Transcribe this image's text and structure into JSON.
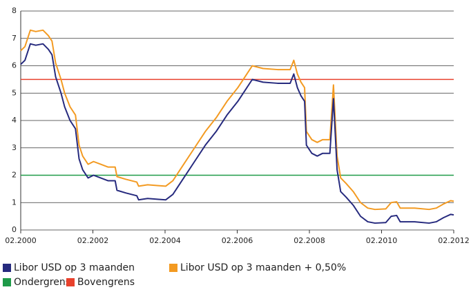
{
  "chart_data": {
    "type": "line",
    "x": [
      2000.083,
      2000.2,
      2000.35,
      2000.5,
      2000.7,
      2000.85,
      2000.95,
      2001.05,
      2001.2,
      2001.3,
      2001.45,
      2001.6,
      2001.7,
      2001.8,
      2001.95,
      2002.1,
      2002.3,
      2002.5,
      2002.7,
      2002.75,
      2003.0,
      2003.3,
      2003.35,
      2003.6,
      2003.9,
      2004.1,
      2004.3,
      2004.6,
      2004.9,
      2005.2,
      2005.5,
      2005.8,
      2006.1,
      2006.3,
      2006.5,
      2006.8,
      2007.2,
      2007.55,
      2007.65,
      2007.75,
      2007.85,
      2007.95,
      2008.0,
      2008.15,
      2008.3,
      2008.45,
      2008.65,
      2008.75,
      2008.85,
      2008.95,
      2009.1,
      2009.3,
      2009.5,
      2009.7,
      2009.9,
      2010.2,
      2010.35,
      2010.5,
      2010.6,
      2011.0,
      2011.4,
      2011.6,
      2011.8,
      2012.0,
      2012.083
    ],
    "series": [
      {
        "name": "Libor USD op 3 maanden",
        "color": "#262a7e",
        "values": [
          6.05,
          6.2,
          6.8,
          6.75,
          6.8,
          6.6,
          6.4,
          5.6,
          5.0,
          4.5,
          4.0,
          3.7,
          2.6,
          2.2,
          1.9,
          2.0,
          1.9,
          1.8,
          1.8,
          1.45,
          1.35,
          1.25,
          1.1,
          1.15,
          1.12,
          1.1,
          1.3,
          1.9,
          2.5,
          3.1,
          3.6,
          4.2,
          4.7,
          5.1,
          5.5,
          5.4,
          5.36,
          5.36,
          5.7,
          5.2,
          4.9,
          4.7,
          3.1,
          2.8,
          2.7,
          2.8,
          2.8,
          4.8,
          2.2,
          1.4,
          1.2,
          0.9,
          0.5,
          0.3,
          0.25,
          0.27,
          0.5,
          0.53,
          0.3,
          0.3,
          0.25,
          0.3,
          0.45,
          0.57,
          0.55
        ]
      },
      {
        "name": "Libor USD op 3 maanden + 0,50%",
        "color": "#f39a21",
        "values": [
          6.55,
          6.7,
          7.3,
          7.25,
          7.3,
          7.1,
          6.9,
          6.1,
          5.5,
          5.0,
          4.5,
          4.2,
          3.1,
          2.7,
          2.4,
          2.5,
          2.4,
          2.3,
          2.3,
          1.95,
          1.85,
          1.75,
          1.6,
          1.65,
          1.62,
          1.6,
          1.8,
          2.4,
          3.0,
          3.6,
          4.1,
          4.7,
          5.2,
          5.6,
          6.0,
          5.9,
          5.86,
          5.86,
          6.2,
          5.7,
          5.4,
          5.2,
          3.6,
          3.3,
          3.2,
          3.3,
          3.3,
          5.3,
          2.7,
          1.9,
          1.7,
          1.4,
          1.0,
          0.8,
          0.75,
          0.77,
          1.0,
          1.03,
          0.8,
          0.8,
          0.75,
          0.8,
          0.95,
          1.07,
          1.05
        ]
      }
    ],
    "reference_lines": [
      {
        "name": "Ondergrens",
        "color": "#1e9a48",
        "value": 2
      },
      {
        "name": "Bovengrens",
        "color": "#e8412c",
        "value": 5.5
      }
    ],
    "xlim": [
      2000.083,
      2012.083
    ],
    "xticks": [
      {
        "value": 2000.083,
        "label": "02.2000"
      },
      {
        "value": 2002.083,
        "label": "02.2002"
      },
      {
        "value": 2004.083,
        "label": "02.2004"
      },
      {
        "value": 2006.083,
        "label": "02.2006"
      },
      {
        "value": 2008.083,
        "label": "02.2008"
      },
      {
        "value": 2010.083,
        "label": "02.2010"
      },
      {
        "value": 2012.083,
        "label": "02.2012"
      }
    ],
    "ylim": [
      0,
      8
    ],
    "yticks": [
      0,
      1,
      2,
      3,
      4,
      5,
      6,
      7,
      8
    ],
    "grid": true
  }
}
